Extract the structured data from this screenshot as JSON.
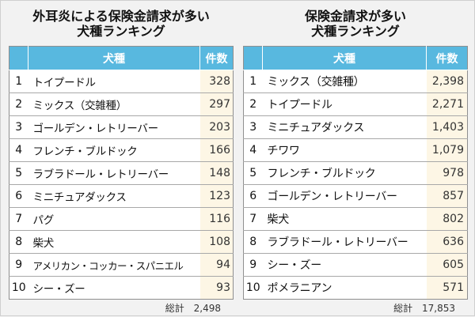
{
  "left_panel": {
    "title": "外耳炎による保険金請求が多い\n犬種ランキング",
    "header": {
      "rank": "",
      "breed": "犬種",
      "count": "件数"
    },
    "rows": [
      {
        "rank": "1",
        "breed": "トイプードル",
        "count": "328"
      },
      {
        "rank": "2",
        "breed": "ミックス（交雑種）",
        "count": "297"
      },
      {
        "rank": "3",
        "breed": "ゴールデン・レトリーバー",
        "count": "203"
      },
      {
        "rank": "4",
        "breed": "フレンチ・ブルドック",
        "count": "166"
      },
      {
        "rank": "5",
        "breed": "ラブラドール・レトリーバー",
        "count": "148"
      },
      {
        "rank": "6",
        "breed": "ミニチュアダックス",
        "count": "123"
      },
      {
        "rank": "7",
        "breed": "パグ",
        "count": "116"
      },
      {
        "rank": "8",
        "breed": "柴犬",
        "count": "108"
      },
      {
        "rank": "9",
        "breed": "アメリカン・コッカー・スパニエル",
        "count": "94"
      },
      {
        "rank": "10",
        "breed": "シー・ズー",
        "count": "93"
      }
    ],
    "total_label": "総計",
    "total_value": "2,498"
  },
  "right_panel": {
    "title": "保険金請求が多い\n犬種ランキング",
    "header": {
      "rank": "",
      "breed": "犬種",
      "count": "件数"
    },
    "rows": [
      {
        "rank": "1",
        "breed": "ミックス（交雑種）",
        "count": "2,398"
      },
      {
        "rank": "2",
        "breed": "トイプードル",
        "count": "2,271"
      },
      {
        "rank": "3",
        "breed": "ミニチュアダックス",
        "count": "1,403"
      },
      {
        "rank": "4",
        "breed": "チワワ",
        "count": "1,079"
      },
      {
        "rank": "5",
        "breed": "フレンチ・ブルドック",
        "count": "978"
      },
      {
        "rank": "6",
        "breed": "ゴールデン・レトリーバー",
        "count": "857"
      },
      {
        "rank": "7",
        "breed": "柴犬",
        "count": "802"
      },
      {
        "rank": "8",
        "breed": "ラブラドール・レトリーバー",
        "count": "636"
      },
      {
        "rank": "9",
        "breed": "シー・ズー",
        "count": "605"
      },
      {
        "rank": "10",
        "breed": "ポメラニアン",
        "count": "571"
      }
    ],
    "total_label": "総計",
    "total_value": "17,853"
  },
  "colors": {
    "header_bg": "#58b8df",
    "count_cell_bg": "#fdf6e5",
    "page_bg": "#f2f2f2"
  }
}
